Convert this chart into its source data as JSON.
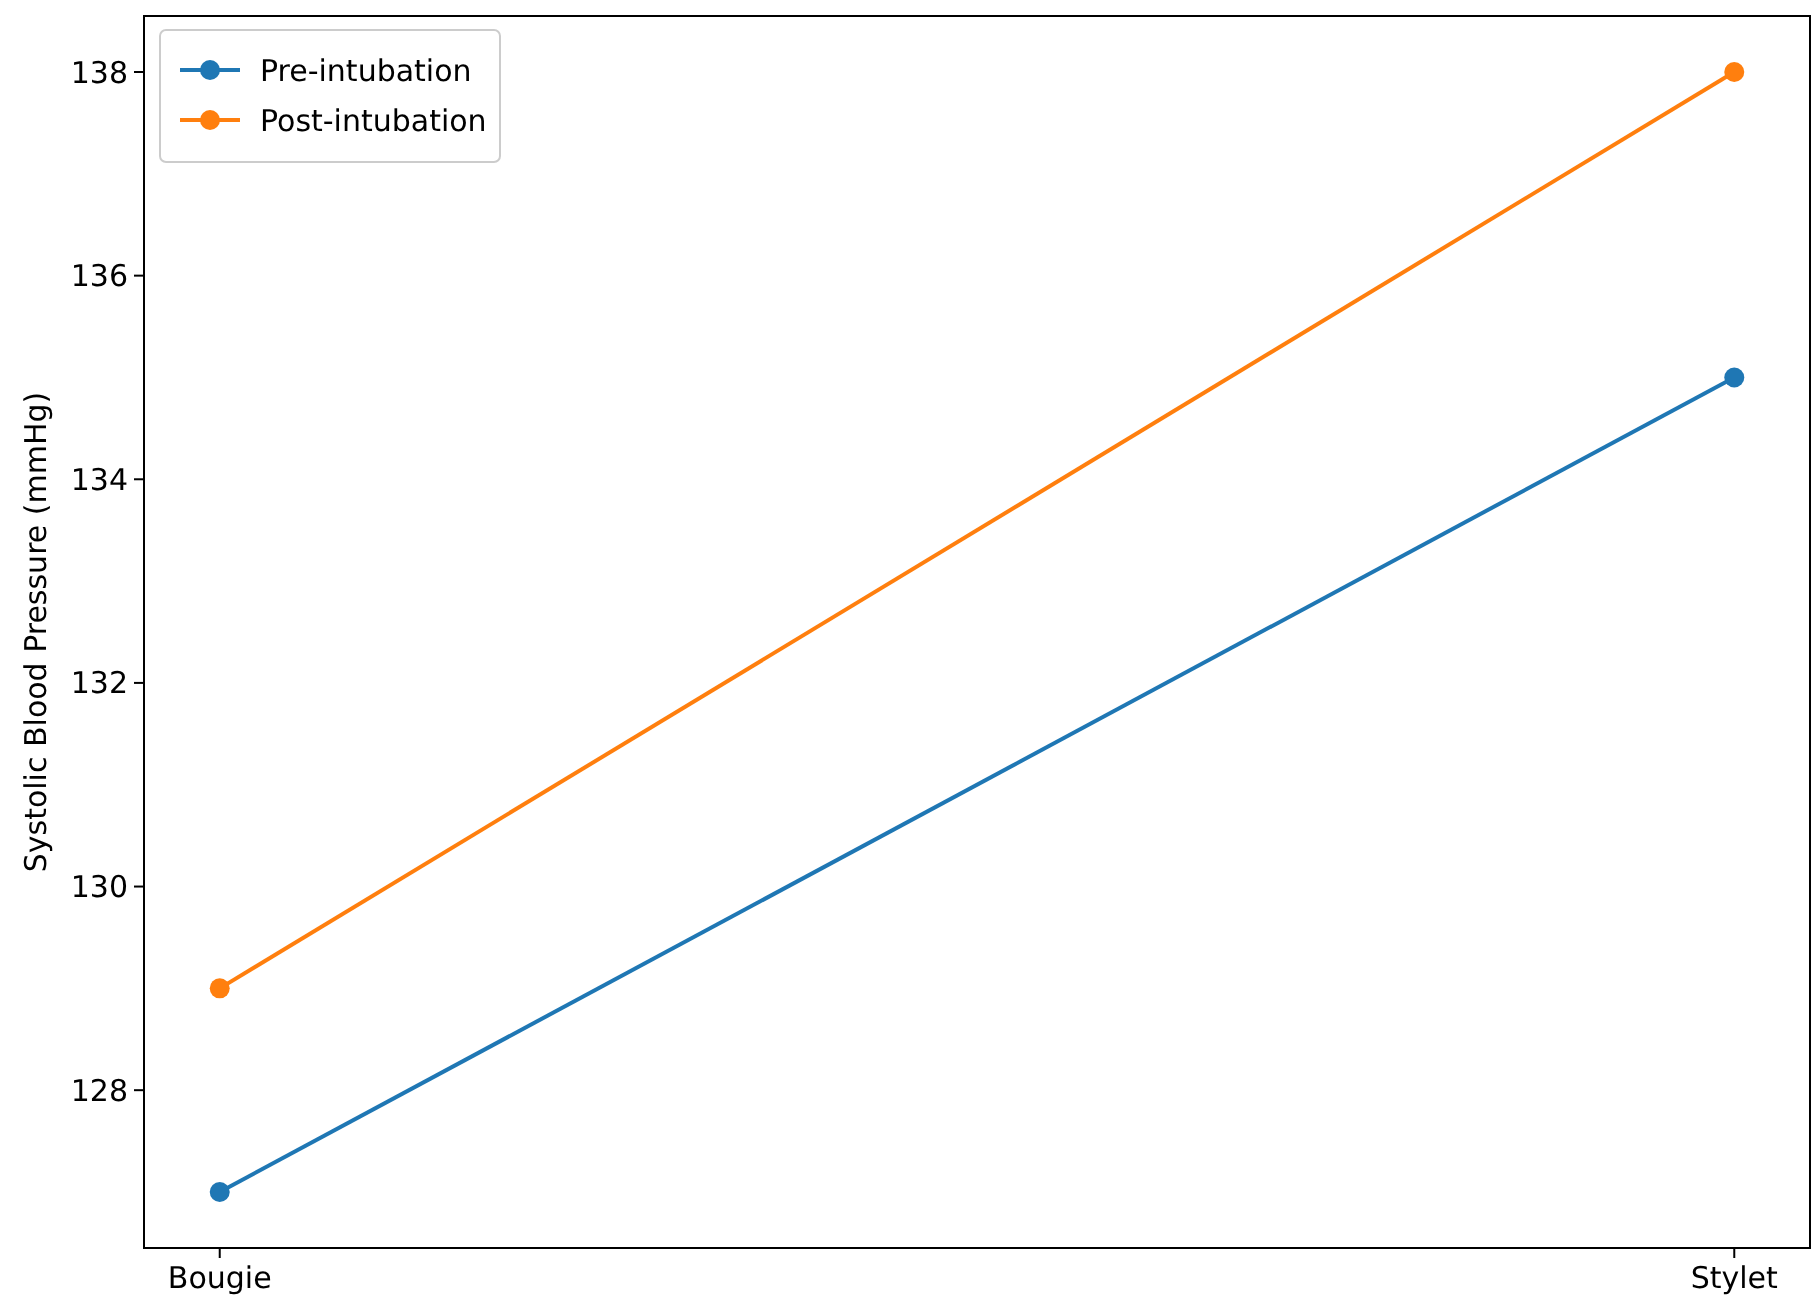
{
  "chart_data": {
    "type": "line",
    "ylabel": "Systolic Blood Pressure (mmHg)",
    "categories": [
      "Bougie",
      "Stylet"
    ],
    "series": [
      {
        "name": "Pre-intubation",
        "color": "#1f77b4",
        "values": [
          127,
          135
        ]
      },
      {
        "name": "Post-intubation",
        "color": "#ff7f0e",
        "values": [
          129,
          138
        ]
      }
    ],
    "ylim": [
      126.45,
      138.55
    ],
    "yticks": [
      128,
      130,
      132,
      134,
      136,
      138
    ],
    "grid": false,
    "legend": "top left",
    "marker": "circle",
    "line_style": "solid"
  }
}
